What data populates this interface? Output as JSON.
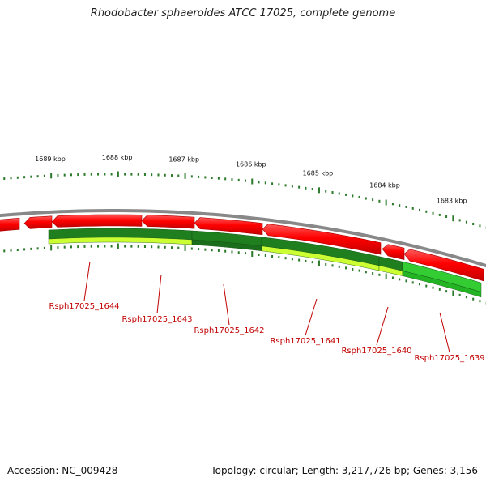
{
  "title": "Rhodobacter sphaeroides ATCC 17025, complete genome",
  "footer": {
    "accession": "Accession: NC_009428",
    "summary": "Topology: circular; Length: 3,217,726 bp; Genes: 3,156"
  },
  "colors": {
    "forward_strand": "#ff0000",
    "reverse_strand_dark": "#1f7f1f",
    "reverse_strand_light": "#ccff33",
    "reverse_strand_mid": "#33cc33",
    "backbone": "#888888",
    "label": "#c00000",
    "tick": "#2a7a2a"
  },
  "scale_labels": [
    "1689 kbp",
    "1688 kbp",
    "1687 kbp",
    "1686 kbp",
    "1685 kbp",
    "1684 kbp",
    "1683 kbp"
  ],
  "genes": [
    {
      "label": "Rsph17025_1644"
    },
    {
      "label": "Rsph17025_1643"
    },
    {
      "label": "Rsph17025_1642"
    },
    {
      "label": "Rsph17025_1641"
    },
    {
      "label": "Rsph17025_1640"
    },
    {
      "label": "Rsph17025_1639"
    }
  ]
}
